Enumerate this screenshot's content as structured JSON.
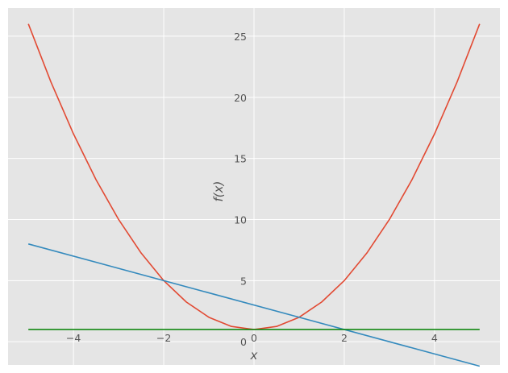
{
  "chart_data": {
    "type": "line",
    "title": "",
    "xlabel": "x",
    "ylabel": "f(x)",
    "xlim": [
      -5.45,
      5.45
    ],
    "ylim": [
      -1.9,
      27.3
    ],
    "grid": true,
    "background": "#e5e5e5",
    "grid_color": "#ffffff",
    "x_ticks": [
      -4,
      -2,
      0,
      2,
      4
    ],
    "x_tick_labels": [
      "−4",
      "−2",
      "0",
      "2",
      "4"
    ],
    "y_ticks": [
      0,
      5,
      10,
      15,
      20,
      25
    ],
    "y_tick_labels": [
      "0",
      "5",
      "10",
      "15",
      "20",
      "25"
    ],
    "series": [
      {
        "color": "#e24a33",
        "x": [
          -5,
          -4.5,
          -4,
          -3.5,
          -3,
          -2.5,
          -2,
          -1.5,
          -1,
          -0.5,
          0,
          0.5,
          1,
          1.5,
          2,
          2.5,
          3,
          3.5,
          4,
          4.5,
          5
        ],
        "values": [
          26,
          21.25,
          17,
          13.25,
          10,
          7.25,
          5,
          3.25,
          2,
          1.25,
          1,
          1.25,
          2,
          3.25,
          5,
          7.25,
          10,
          13.25,
          17,
          21.25,
          26
        ]
      },
      {
        "color": "#348abd",
        "x": [
          -5,
          5
        ],
        "values": [
          8,
          -2
        ]
      },
      {
        "color": "#008000",
        "x": [
          -5,
          5
        ],
        "values": [
          1,
          1
        ]
      }
    ]
  }
}
